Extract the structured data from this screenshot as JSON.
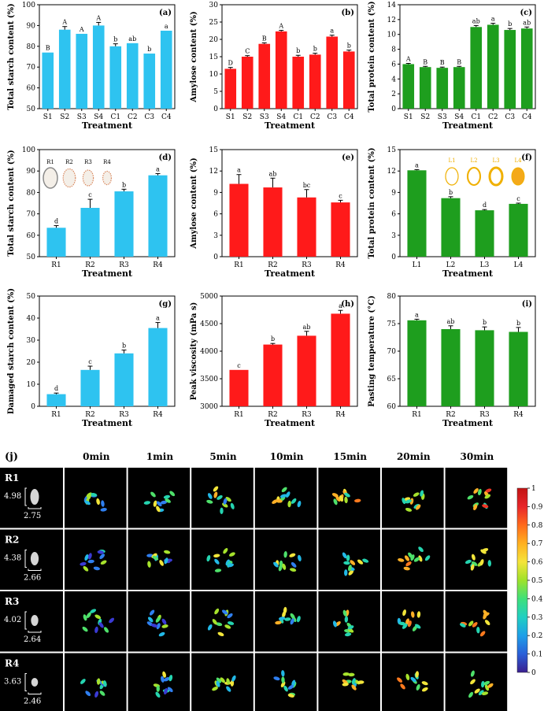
{
  "chart_data": [
    {
      "id": "a",
      "type": "bar",
      "panel_label": "(a)",
      "ylabel": "Total starch content (%)",
      "xlabel": "Treatment",
      "ylim": [
        50,
        100
      ],
      "yticks": [
        50,
        60,
        70,
        80,
        90,
        100
      ],
      "color": "#2EC3F0",
      "categories": [
        "S1",
        "S2",
        "S3",
        "S4",
        "C1",
        "C2",
        "C3",
        "C4"
      ],
      "values": [
        77,
        88,
        86,
        90,
        80,
        81.5,
        76.5,
        87.5
      ],
      "errors": [
        0,
        1.5,
        0,
        1.5,
        1.2,
        0,
        0,
        0
      ],
      "letters": [
        "B",
        "A",
        "A",
        "A",
        "b",
        "ab",
        "b",
        "a"
      ]
    },
    {
      "id": "b",
      "type": "bar",
      "panel_label": "(b)",
      "ylabel": "Amylose content (%)",
      "xlabel": "Treatment",
      "ylim": [
        0,
        30
      ],
      "yticks": [
        0,
        5,
        10,
        15,
        20,
        25,
        30
      ],
      "color": "#FF1A1A",
      "categories": [
        "S1",
        "S2",
        "S3",
        "S4",
        "C1",
        "C2",
        "C3",
        "C4"
      ],
      "values": [
        11.5,
        15,
        18.7,
        22.3,
        15,
        15.6,
        20.8,
        16.5
      ],
      "errors": [
        0.4,
        0.3,
        0.3,
        0.3,
        0.4,
        0.4,
        0.4,
        0.4
      ],
      "letters": [
        "D",
        "C",
        "B",
        "A",
        "b",
        "b",
        "a",
        "b"
      ]
    },
    {
      "id": "c",
      "type": "bar",
      "panel_label": "(c)",
      "ylabel": "Total protein content (%)",
      "xlabel": "Treatment",
      "ylim": [
        0,
        14
      ],
      "yticks": [
        0,
        2,
        4,
        6,
        8,
        10,
        12,
        14
      ],
      "color": "#1E9E1E",
      "categories": [
        "S1",
        "S2",
        "S3",
        "S4",
        "C1",
        "C2",
        "C3",
        "C4"
      ],
      "values": [
        6,
        5.6,
        5.5,
        5.6,
        11,
        11.3,
        10.6,
        10.8
      ],
      "errors": [
        0.1,
        0.1,
        0.1,
        0.1,
        0.2,
        0.2,
        0.2,
        0.2
      ],
      "letters": [
        "A",
        "B",
        "B",
        "B",
        "ab",
        "a",
        "b",
        "ab"
      ]
    },
    {
      "id": "d",
      "type": "bar",
      "panel_label": "(d)",
      "ylabel": "Total starch content (%)",
      "xlabel": "Treatment",
      "ylim": [
        50,
        100
      ],
      "yticks": [
        50,
        60,
        70,
        80,
        90,
        100
      ],
      "color": "#2EC3F0",
      "categories": [
        "R1",
        "R2",
        "R3",
        "R4"
      ],
      "values": [
        63.5,
        72.8,
        80.5,
        88
      ],
      "errors": [
        1,
        4,
        1,
        0.8
      ],
      "letters": [
        "d",
        "c",
        "b",
        "a"
      ],
      "inset": [
        "R1",
        "R2",
        "R3",
        "R4"
      ]
    },
    {
      "id": "e",
      "type": "bar",
      "panel_label": "(e)",
      "ylabel": "Amylose content (%)",
      "xlabel": "Treatment",
      "ylim": [
        0,
        15
      ],
      "yticks": [
        0,
        3,
        6,
        9,
        12,
        15
      ],
      "color": "#FF1A1A",
      "categories": [
        "R1",
        "R2",
        "R3",
        "R4"
      ],
      "values": [
        10.2,
        9.7,
        8.3,
        7.6
      ],
      "errors": [
        1.3,
        1.3,
        1.1,
        0.3
      ],
      "letters": [
        "a",
        "ab",
        "bc",
        "c"
      ]
    },
    {
      "id": "f",
      "type": "bar",
      "panel_label": "(f)",
      "ylabel": "Total protein content (%)",
      "xlabel": "Treatment",
      "ylim": [
        0,
        15
      ],
      "yticks": [
        0,
        3,
        6,
        9,
        12,
        15
      ],
      "color": "#1E9E1E",
      "categories": [
        "L1",
        "L2",
        "L3",
        "L4"
      ],
      "values": [
        12.1,
        8.2,
        6.5,
        7.4
      ],
      "errors": [
        0.1,
        0.2,
        0.1,
        0.1
      ],
      "letters": [
        "a",
        "b",
        "d",
        "c"
      ],
      "inset": [
        "L1",
        "L2",
        "L3",
        "L4"
      ]
    },
    {
      "id": "g",
      "type": "bar",
      "panel_label": "(g)",
      "ylabel": "Damaged starch content (%)",
      "xlabel": "Treatment",
      "ylim": [
        0,
        50
      ],
      "yticks": [
        0,
        10,
        20,
        30,
        40,
        50
      ],
      "color": "#2EC3F0",
      "categories": [
        "R1",
        "R2",
        "R3",
        "R4"
      ],
      "values": [
        5.5,
        16.5,
        24,
        35.5
      ],
      "errors": [
        0.5,
        1.7,
        1.5,
        2.5
      ],
      "letters": [
        "d",
        "c",
        "b",
        "a"
      ]
    },
    {
      "id": "h",
      "type": "bar",
      "panel_label": "(h)",
      "ylabel": "Peak viscosity (mPa s)",
      "xlabel": "Treatment",
      "ylim": [
        3000,
        5000
      ],
      "yticks": [
        3000,
        3500,
        4000,
        4500,
        5000
      ],
      "color": "#FF1A1A",
      "categories": [
        "R1",
        "R2",
        "R3",
        "R4"
      ],
      "values": [
        3660,
        4120,
        4280,
        4680
      ],
      "errors": [
        0,
        20,
        80,
        60
      ],
      "letters": [
        "c",
        "b",
        "ab",
        "a"
      ]
    },
    {
      "id": "i",
      "type": "bar",
      "panel_label": "(i)",
      "ylabel": "Pasting temperature (°C)",
      "xlabel": "Treatment",
      "ylim": [
        60,
        80
      ],
      "yticks": [
        60,
        65,
        70,
        75,
        80
      ],
      "color": "#1E9E1E",
      "categories": [
        "R1",
        "R2",
        "R3",
        "R4"
      ],
      "values": [
        75.6,
        74,
        73.8,
        73.5
      ],
      "errors": [
        0.2,
        0.6,
        0.6,
        0.8
      ],
      "letters": [
        "a",
        "ab",
        "b",
        "b"
      ]
    }
  ],
  "panel_j": {
    "label": "(j)",
    "time_headers": [
      "0min",
      "1min",
      "5min",
      "10min",
      "15min",
      "20min",
      "30min"
    ],
    "rows": [
      {
        "label": "R1",
        "length": "4.98",
        "width": "2.75"
      },
      {
        "label": "R2",
        "length": "4.38",
        "width": "2.66"
      },
      {
        "label": "R3",
        "length": "4.02",
        "width": "2.64"
      },
      {
        "label": "R4",
        "length": "3.63",
        "width": "2.46"
      }
    ],
    "colorbar_ticks": [
      "0",
      "0.1",
      "0.2",
      "0.3",
      "0.4",
      "0.5",
      "0.6",
      "0.7",
      "0.8",
      "0.9",
      "1"
    ]
  }
}
